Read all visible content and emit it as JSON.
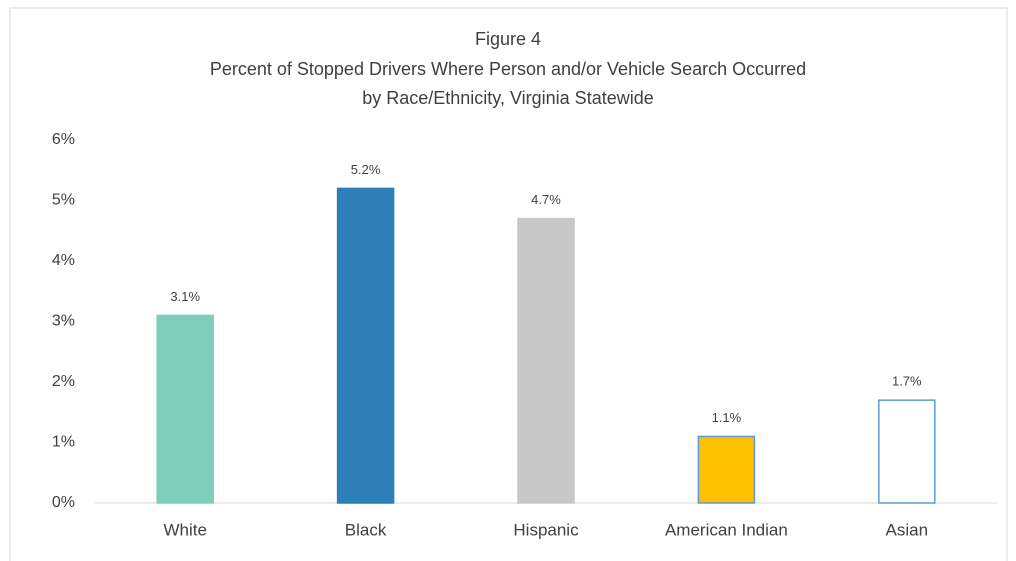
{
  "chart_data": {
    "type": "bar",
    "title": "Figure 4",
    "subtitle": [
      "Percent of Stopped Drivers Where Person and/or Vehicle Search Occurred",
      "by Race/Ethnicity, Virginia Statewide"
    ],
    "categories": [
      "White",
      "Black",
      "Hispanic",
      "American Indian",
      "Asian"
    ],
    "values": [
      3.1,
      5.2,
      4.7,
      1.1,
      1.7
    ],
    "value_labels": [
      "3.1%",
      "5.2%",
      "4.7%",
      "1.1%",
      "1.7%"
    ],
    "colors": [
      "#7fcdbb",
      "#2c7fb8",
      "#c8c8c8",
      "#ffc000",
      "#ffffff"
    ],
    "edge_colors": [
      "#7fcdbb",
      "#2c7fb8",
      "#c8c8c8",
      "#5b9bd5",
      "#5b9bd5"
    ],
    "ylim": [
      0,
      6
    ],
    "yticks": [
      {
        "value": 0,
        "label": "0%"
      },
      {
        "value": 1,
        "label": "1%"
      },
      {
        "value": 2,
        "label": "2%"
      },
      {
        "value": 3,
        "label": "3%"
      },
      {
        "value": 4,
        "label": "4%"
      },
      {
        "value": 5,
        "label": "5%"
      },
      {
        "value": 6,
        "label": "6%"
      }
    ],
    "grid": false
  }
}
